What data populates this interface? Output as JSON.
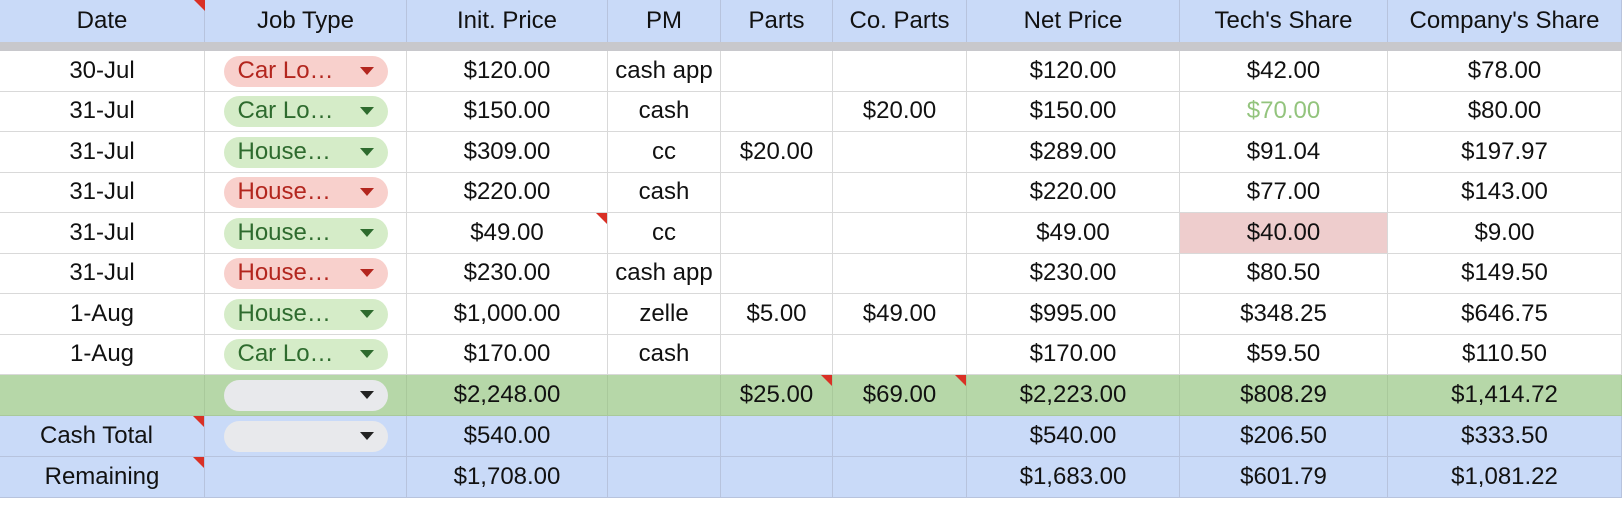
{
  "colors": {
    "header_bg": "#c9daf8",
    "total_bg": "#b6d7a8",
    "chip_red_bg": "#f8d0cc",
    "chip_red_fg": "#b3261e",
    "chip_green_bg": "#d5ecc8",
    "chip_green_fg": "#2e6b2e",
    "highlight_bg": "#eecdcd",
    "green_text": "#93c47d",
    "comment_flag": "#d93025"
  },
  "headers": [
    "Date",
    "Job Type",
    "Init. Price",
    "PM",
    "Parts",
    "Co. Parts",
    "Net Price",
    "Tech's Share",
    "Company's Share"
  ],
  "rows": [
    {
      "date": "30-Jul",
      "job": "Car Lo…",
      "job_color": "red",
      "init": "$120.00",
      "pm": "cash app",
      "parts": "",
      "co_parts": "",
      "net": "$120.00",
      "tech": "$42.00",
      "company": "$78.00"
    },
    {
      "date": "31-Jul",
      "job": "Car Lo…",
      "job_color": "green",
      "init": "$150.00",
      "pm": "cash",
      "parts": "",
      "co_parts": "$20.00",
      "net": "$150.00",
      "tech": "$70.00",
      "company": "$80.00"
    },
    {
      "date": "31-Jul",
      "job": "House…",
      "job_color": "green",
      "init": "$309.00",
      "pm": "cc",
      "parts": "$20.00",
      "co_parts": "",
      "net": "$289.00",
      "tech": "$91.04",
      "company": "$197.97"
    },
    {
      "date": "31-Jul",
      "job": "House…",
      "job_color": "red",
      "init": "$220.00",
      "pm": "cash",
      "parts": "",
      "co_parts": "",
      "net": "$220.00",
      "tech": "$77.00",
      "company": "$143.00"
    },
    {
      "date": "31-Jul",
      "job": "House…",
      "job_color": "green",
      "init": "$49.00",
      "pm": "cc",
      "parts": "",
      "co_parts": "",
      "net": "$49.00",
      "tech": "$40.00",
      "company": "$9.00"
    },
    {
      "date": "31-Jul",
      "job": "House…",
      "job_color": "red",
      "init": "$230.00",
      "pm": "cash app",
      "parts": "",
      "co_parts": "",
      "net": "$230.00",
      "tech": "$80.50",
      "company": "$149.50"
    },
    {
      "date": "1-Aug",
      "job": "House…",
      "job_color": "green",
      "init": "$1,000.00",
      "pm": "zelle",
      "parts": "$5.00",
      "co_parts": "$49.00",
      "net": "$995.00",
      "tech": "$348.25",
      "company": "$646.75"
    },
    {
      "date": "1-Aug",
      "job": "Car Lo…",
      "job_color": "green",
      "init": "$170.00",
      "pm": "cash",
      "parts": "",
      "co_parts": "",
      "net": "$170.00",
      "tech": "$59.50",
      "company": "$110.50"
    }
  ],
  "totals": {
    "init": "$2,248.00",
    "parts": "$25.00",
    "co_parts": "$69.00",
    "net": "$2,223.00",
    "tech": "$808.29",
    "company": "$1,414.72"
  },
  "cash_total": {
    "label": "Cash Total",
    "init": "$540.00",
    "net": "$540.00",
    "tech": "$206.50",
    "company": "$333.50"
  },
  "remaining": {
    "label": "Remaining",
    "init": "$1,708.00",
    "net": "$1,683.00",
    "tech": "$601.79",
    "company": "$1,081.22"
  }
}
